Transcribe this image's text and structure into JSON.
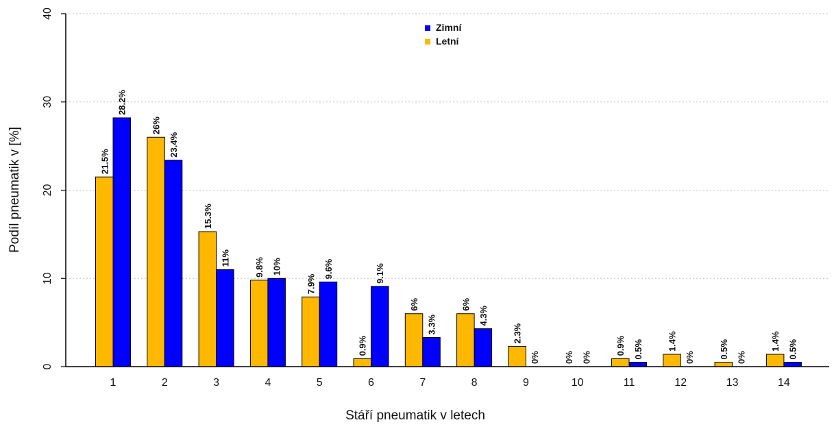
{
  "chart_data": {
    "type": "bar",
    "title": "",
    "xlabel": "Stáří pneumatik v letech",
    "ylabel": "Podíl pneumatik v [%]",
    "ylim": [
      0,
      40
    ],
    "yticks": [
      0,
      10,
      20,
      30,
      40
    ],
    "grid": "horizontal dotted",
    "legend_position": "top-center",
    "categories": [
      "1",
      "2",
      "3",
      "4",
      "5",
      "6",
      "7",
      "8",
      "9",
      "10",
      "11",
      "12",
      "13",
      "14"
    ],
    "series": [
      {
        "name": "Letní",
        "color": "#FFB800",
        "values": [
          21.5,
          26,
          15.3,
          9.8,
          7.9,
          0.9,
          6,
          6,
          2.3,
          0,
          0.9,
          1.4,
          0.5,
          1.4
        ],
        "labels": [
          "21.5%",
          "26%",
          "15.3%",
          "9.8%",
          "7.9%",
          "0.9%",
          "6%",
          "6%",
          "2.3%",
          "0%",
          "0.9%",
          "1.4%",
          "0.5%",
          "1.4%"
        ]
      },
      {
        "name": "Zimní",
        "color": "#0000FF",
        "values": [
          28.2,
          23.4,
          11,
          10,
          9.6,
          9.1,
          3.3,
          4.3,
          0,
          0,
          0.5,
          0,
          0,
          0.5
        ],
        "labels": [
          "28.2%",
          "23.4%",
          "11%",
          "10%",
          "9.6%",
          "9.1%",
          "3.3%",
          "4.3%",
          "0%",
          "0%",
          "0.5%",
          "0%",
          "0%",
          "0.5%"
        ]
      }
    ],
    "legend_order": [
      "Zimní",
      "Letní"
    ]
  }
}
